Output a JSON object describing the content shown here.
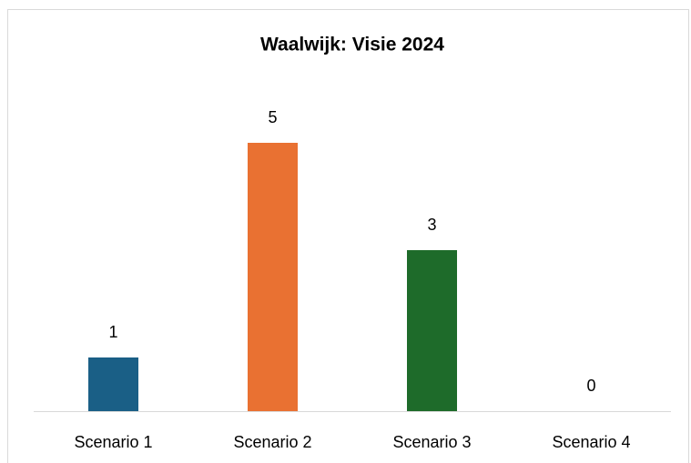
{
  "chart_data": {
    "type": "bar",
    "title": "Waalwijk: Visie 2024",
    "categories": [
      "Scenario 1",
      "Scenario 2",
      "Scenario 3",
      "Scenario 4"
    ],
    "values": [
      1,
      5,
      3,
      0
    ],
    "colors": [
      "#1a5f86",
      "#e97132",
      "#1e6b2a",
      "#a02b93"
    ],
    "ylim": [
      0,
      6
    ]
  }
}
